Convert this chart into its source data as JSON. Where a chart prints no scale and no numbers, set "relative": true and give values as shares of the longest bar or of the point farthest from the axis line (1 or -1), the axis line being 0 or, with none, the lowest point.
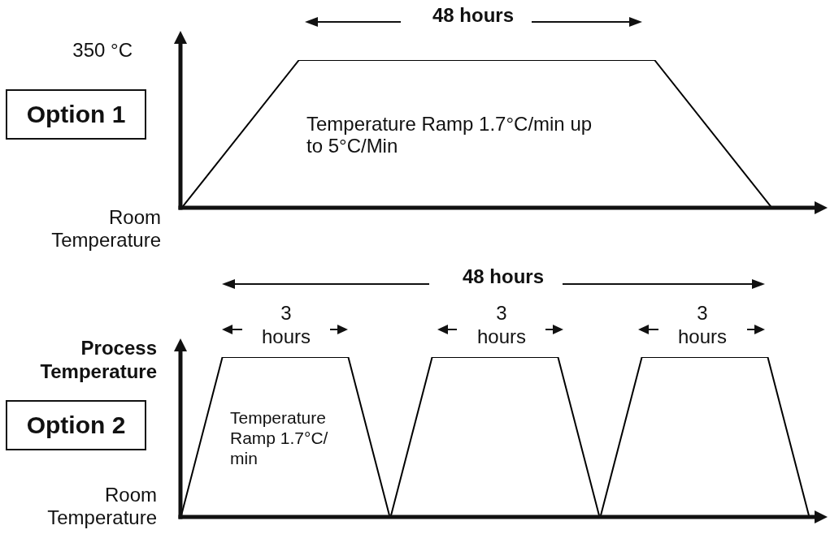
{
  "chart_data": [
    {
      "type": "line",
      "title": "Option 1",
      "categories": [
        null,
        null,
        null,
        null,
        null,
        null
      ],
      "values": [
        0,
        1,
        1,
        1,
        1,
        0
      ],
      "color": "#000000",
      "relative": true,
      "annotations": [
        "48 hours",
        "350 °C",
        "Temperature Ramp 1.7°C/min up to 5°C/Min",
        "Room Temperature"
      ]
    },
    {
      "type": "line",
      "title": "Option 2",
      "categories": [
        null,
        null,
        null,
        null,
        null,
        null,
        null,
        null,
        null,
        null,
        null,
        null,
        null,
        null,
        null,
        null
      ],
      "values": [
        0,
        1,
        1,
        1,
        1,
        0,
        1,
        1,
        1,
        1,
        0,
        1,
        1,
        1,
        1,
        0
      ],
      "color": "#000000",
      "relative": true,
      "annotations": [
        "48 hours",
        "3 hours",
        "3 hours",
        "3 hours",
        "Process Temperature",
        "Temperature Ramp 1.7°C/ min",
        "Room Temperature"
      ]
    }
  ]
}
